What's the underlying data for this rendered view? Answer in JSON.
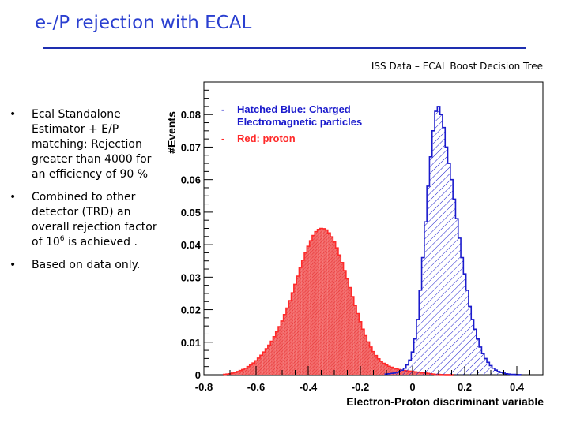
{
  "slide": {
    "title": "e-/P rejection with ECAL",
    "subtitle": "ISS Data – ECAL Boost Decision Tree",
    "bullets": [
      {
        "text": "Ecal Standalone Estimator + E/P matching: Rejection greater than 4000 for an efficiency of 90 %"
      },
      {
        "before": "Combined to other detector (TRD) an overall rejection factor of 10",
        "sup": "6",
        "after": " is achieved ."
      },
      {
        "text": "Based on data only."
      }
    ],
    "bullet_glyph": "•"
  },
  "chart_data": {
    "type": "histogram",
    "title": "",
    "xlabel": "Electron-Proton discriminant variable",
    "ylabel": "#Events",
    "xlim": [
      -0.8,
      0.5
    ],
    "ylim": [
      0,
      0.09
    ],
    "xticks": [
      "-0.8",
      "-0.6",
      "-0.4",
      "-0.2",
      "0",
      "0.2",
      "0.4"
    ],
    "yticks": [
      "0",
      "0.01",
      "0.02",
      "0.03",
      "0.04",
      "0.05",
      "0.06",
      "0.07",
      "0.08"
    ],
    "legend_position": "top-left",
    "bin_width": 0.01,
    "series": [
      {
        "name": "Hatched Blue: Charged Electromagnetic particles",
        "legend_lines": [
          "Hatched Blue: Charged",
          "Electromagnetic particles"
        ],
        "color": "#1a1acc",
        "style": "hatched",
        "x": [
          -0.1,
          -0.09,
          -0.08,
          -0.07,
          -0.06,
          -0.05,
          -0.04,
          -0.03,
          -0.02,
          -0.01,
          0,
          0.01,
          0.02,
          0.03,
          0.04,
          0.05,
          0.06,
          0.07,
          0.08,
          0.09,
          0.1,
          0.11,
          0.12,
          0.13,
          0.14,
          0.15,
          0.16,
          0.17,
          0.18,
          0.19,
          0.2,
          0.21,
          0.22,
          0.23,
          0.24,
          0.25,
          0.26,
          0.27,
          0.28,
          0.29,
          0.3,
          0.31,
          0.32,
          0.33,
          0.34,
          0.35,
          0.36,
          0.37,
          0.38,
          0.39,
          0.4,
          0.41
        ],
        "values": [
          0.0002,
          0.0003,
          0.0004,
          0.0005,
          0.0007,
          0.001,
          0.0014,
          0.002,
          0.003,
          0.0045,
          0.007,
          0.011,
          0.017,
          0.026,
          0.036,
          0.047,
          0.058,
          0.067,
          0.075,
          0.081,
          0.0825,
          0.08,
          0.076,
          0.07,
          0.065,
          0.06,
          0.054,
          0.048,
          0.042,
          0.036,
          0.031,
          0.026,
          0.021,
          0.017,
          0.014,
          0.011,
          0.0085,
          0.0065,
          0.005,
          0.0038,
          0.0028,
          0.002,
          0.0014,
          0.001,
          0.0007,
          0.0005,
          0.0003,
          0.0002,
          0.0001,
          0.0001,
          5e-05,
          3e-05
        ]
      },
      {
        "name": "Red: proton",
        "legend_lines": [
          "Red: proton"
        ],
        "color": "#ff2a2a",
        "style": "filled",
        "x": [
          -0.72,
          -0.71,
          -0.7,
          -0.69,
          -0.68,
          -0.67,
          -0.66,
          -0.65,
          -0.64,
          -0.63,
          -0.62,
          -0.61,
          -0.6,
          -0.59,
          -0.58,
          -0.57,
          -0.56,
          -0.55,
          -0.54,
          -0.53,
          -0.52,
          -0.51,
          -0.5,
          -0.49,
          -0.48,
          -0.47,
          -0.46,
          -0.45,
          -0.44,
          -0.43,
          -0.42,
          -0.41,
          -0.4,
          -0.39,
          -0.38,
          -0.37,
          -0.36,
          -0.35,
          -0.34,
          -0.33,
          -0.32,
          -0.31,
          -0.3,
          -0.29,
          -0.28,
          -0.27,
          -0.26,
          -0.25,
          -0.24,
          -0.23,
          -0.22,
          -0.21,
          -0.2,
          -0.19,
          -0.18,
          -0.17,
          -0.16,
          -0.15,
          -0.14,
          -0.13,
          -0.12,
          -0.11,
          -0.1,
          -0.09,
          -0.08,
          -0.07,
          -0.06,
          -0.05,
          -0.04,
          -0.03,
          -0.02,
          -0.01,
          0,
          0.01,
          0.02,
          0.03,
          0.04,
          0.05,
          0.06,
          0.07,
          0.08,
          0.09,
          0.1,
          0.11,
          0.12,
          0.13,
          0.14,
          0.15
        ],
        "values": [
          0.0001,
          0.0002,
          0.0003,
          0.0005,
          0.0007,
          0.001,
          0.0013,
          0.0016,
          0.002,
          0.0025,
          0.003,
          0.0036,
          0.0043,
          0.0051,
          0.006,
          0.007,
          0.008,
          0.0091,
          0.0103,
          0.0117,
          0.0132,
          0.0148,
          0.0165,
          0.0185,
          0.0205,
          0.0228,
          0.0252,
          0.0278,
          0.0303,
          0.033,
          0.0352,
          0.0375,
          0.0395,
          0.0412,
          0.0428,
          0.044,
          0.0447,
          0.045,
          0.0449,
          0.0445,
          0.0436,
          0.0424,
          0.0408,
          0.039,
          0.0368,
          0.0345,
          0.032,
          0.0295,
          0.0268,
          0.024,
          0.0213,
          0.0188,
          0.0163,
          0.014,
          0.012,
          0.0101,
          0.0085,
          0.0071,
          0.0059,
          0.0049,
          0.0041,
          0.0035,
          0.003,
          0.0026,
          0.0023,
          0.002,
          0.0018,
          0.0016,
          0.0014,
          0.0013,
          0.0012,
          0.0011,
          0.001,
          0.0009,
          0.0008,
          0.0007,
          0.0006,
          0.0005,
          0.0004,
          0.0003,
          0.0002,
          0.0001,
          0.0001,
          5e-05,
          3e-05,
          2e-05,
          1e-05,
          1e-05
        ]
      }
    ]
  }
}
